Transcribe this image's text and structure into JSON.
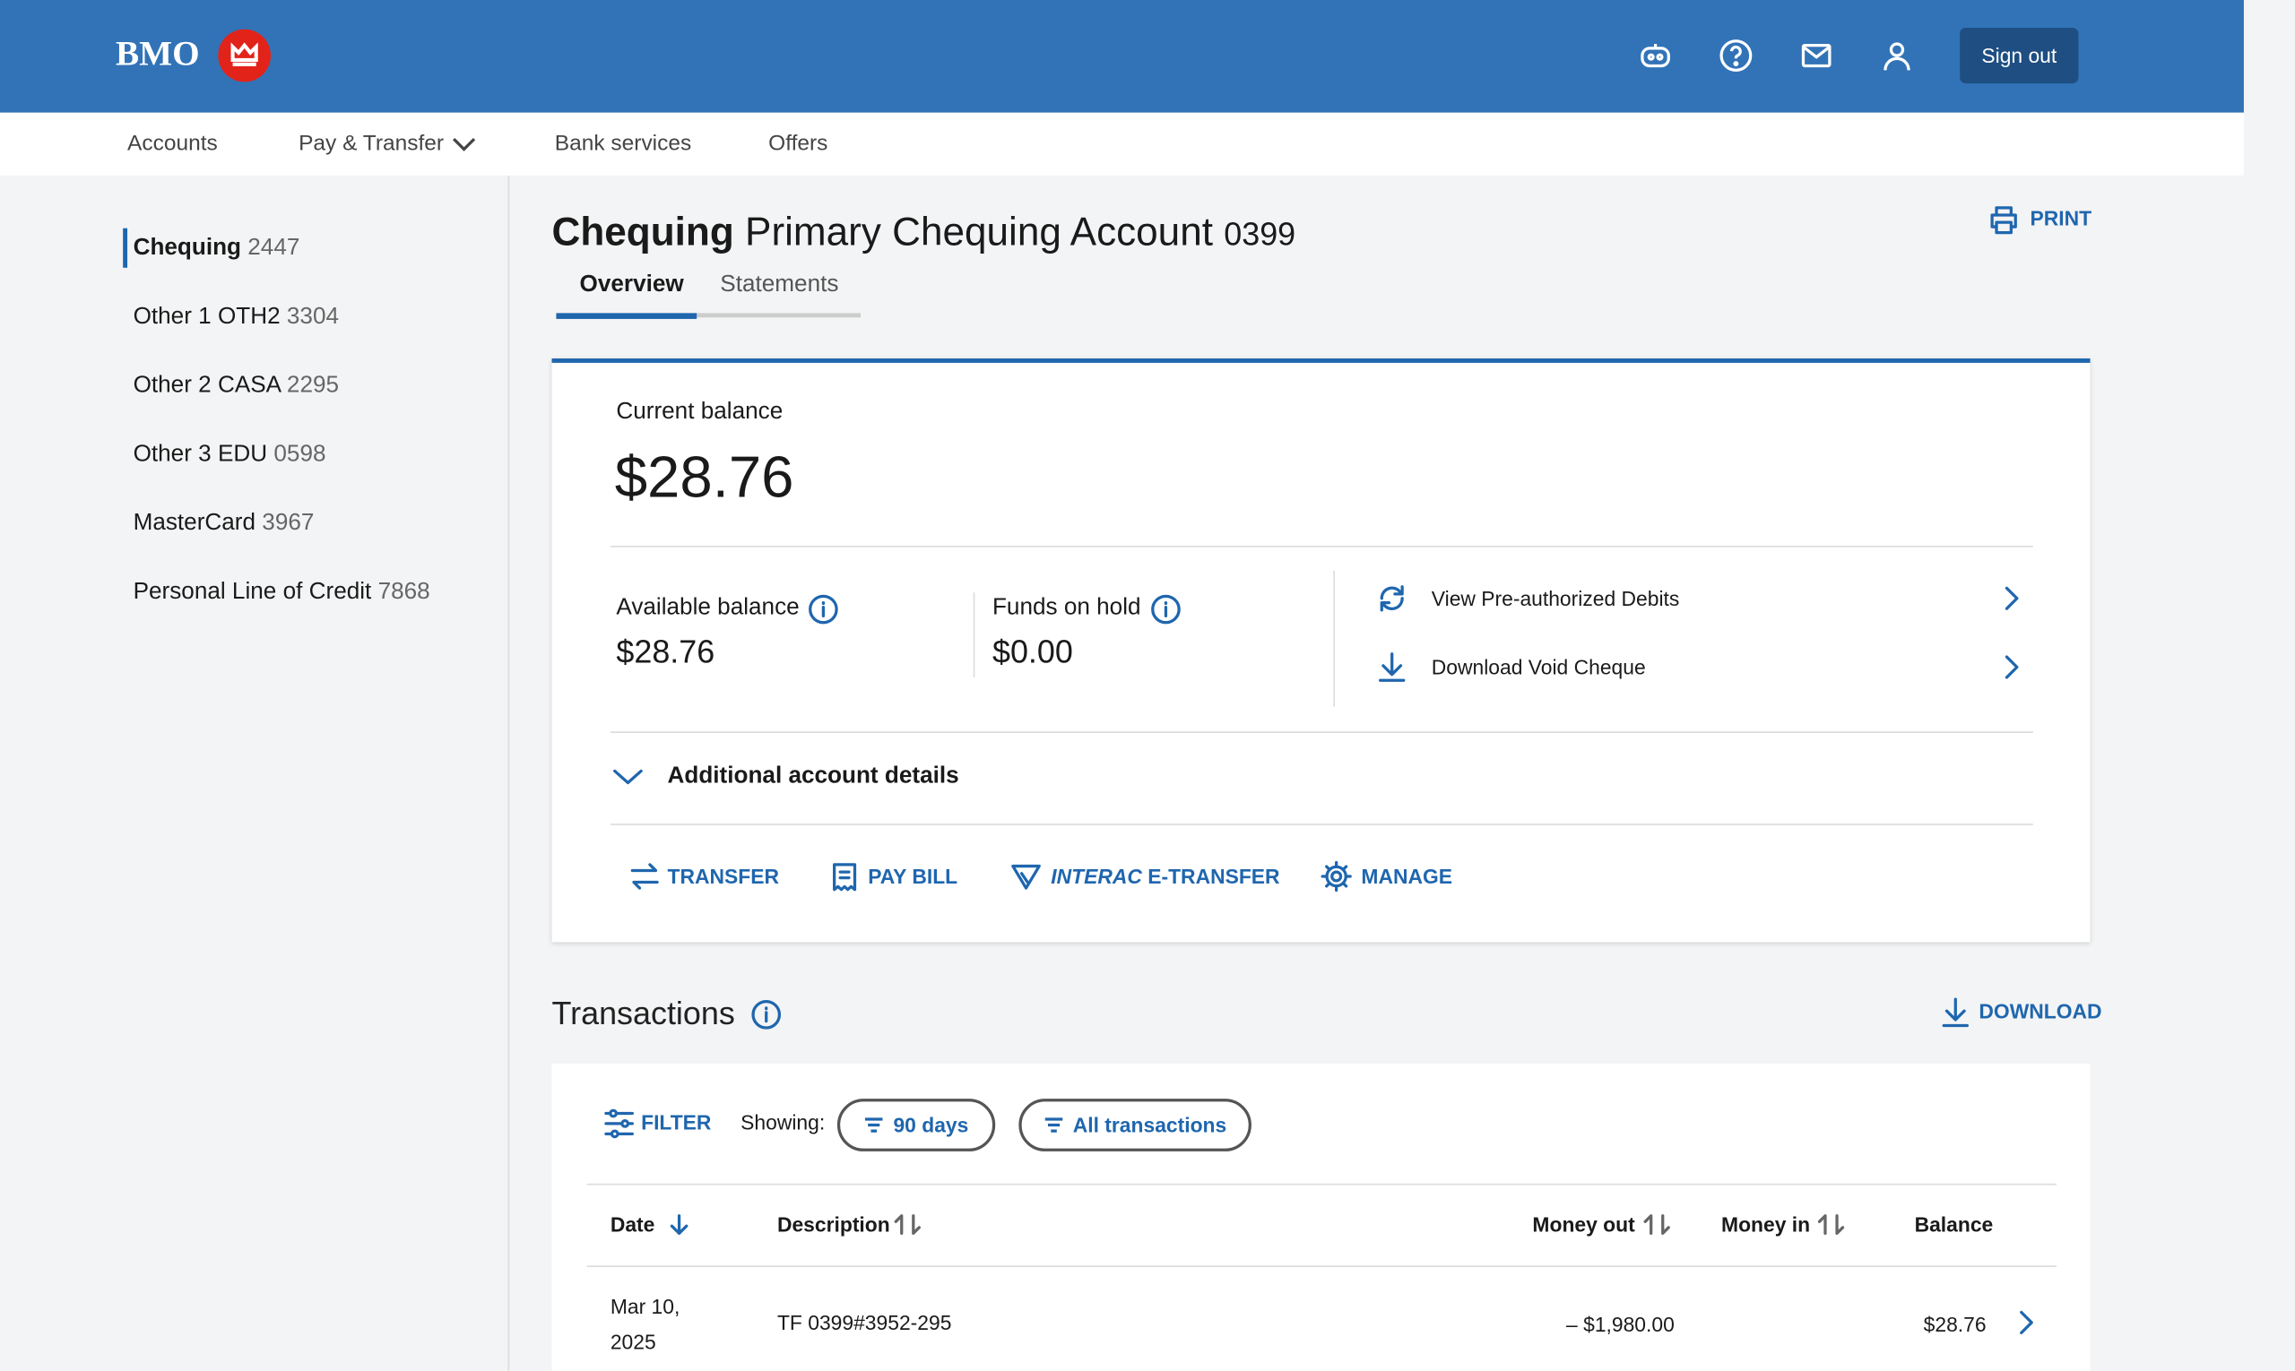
{
  "header": {
    "logo": "BMO",
    "sign_out": "Sign out"
  },
  "nav": {
    "items": [
      "Accounts",
      "Pay & Transfer",
      "Bank services",
      "Offers"
    ]
  },
  "sidebar": {
    "accounts": [
      {
        "name": "Chequing",
        "number": "2447"
      },
      {
        "name": "Other 1 OTH2",
        "number": "3304"
      },
      {
        "name": "Other 2 CASA",
        "number": "2295"
      },
      {
        "name": "Other 3 EDU",
        "number": "0598"
      },
      {
        "name": "MasterCard",
        "number": "3967"
      },
      {
        "name": "Personal Line of Credit",
        "number": "7868"
      }
    ]
  },
  "account": {
    "type": "Chequing",
    "name": "Primary Chequing Account",
    "number": "0399",
    "print": "PRINT",
    "tabs": [
      "Overview",
      "Statements"
    ],
    "current_balance_label": "Current balance",
    "current_balance": "$28.76",
    "available_balance_label": "Available balance",
    "available_balance": "$28.76",
    "funds_on_hold_label": "Funds on hold",
    "funds_on_hold": "$0.00",
    "links": [
      "View Pre-authorized Debits",
      "Download Void Cheque"
    ],
    "details": "Additional account details",
    "actions": {
      "transfer": "TRANSFER",
      "pay_bill": "PAY BILL",
      "interac": "INTERAC",
      "etransfer": "E-TRANSFER",
      "manage": "MANAGE"
    }
  },
  "transactions": {
    "title": "Transactions",
    "download": "DOWNLOAD",
    "filter": "FILTER",
    "showing": "Showing:",
    "pills": [
      "90 days",
      "All transactions"
    ],
    "columns": [
      "Date",
      "Description",
      "Money out",
      "Money in",
      "Balance"
    ],
    "rows": [
      {
        "date_line1": "Mar 10,",
        "date_line2": "2025",
        "description": "TF 0399#3952-295",
        "money_out": "– $1,980.00",
        "money_in": "",
        "balance": "$28.76"
      }
    ]
  }
}
